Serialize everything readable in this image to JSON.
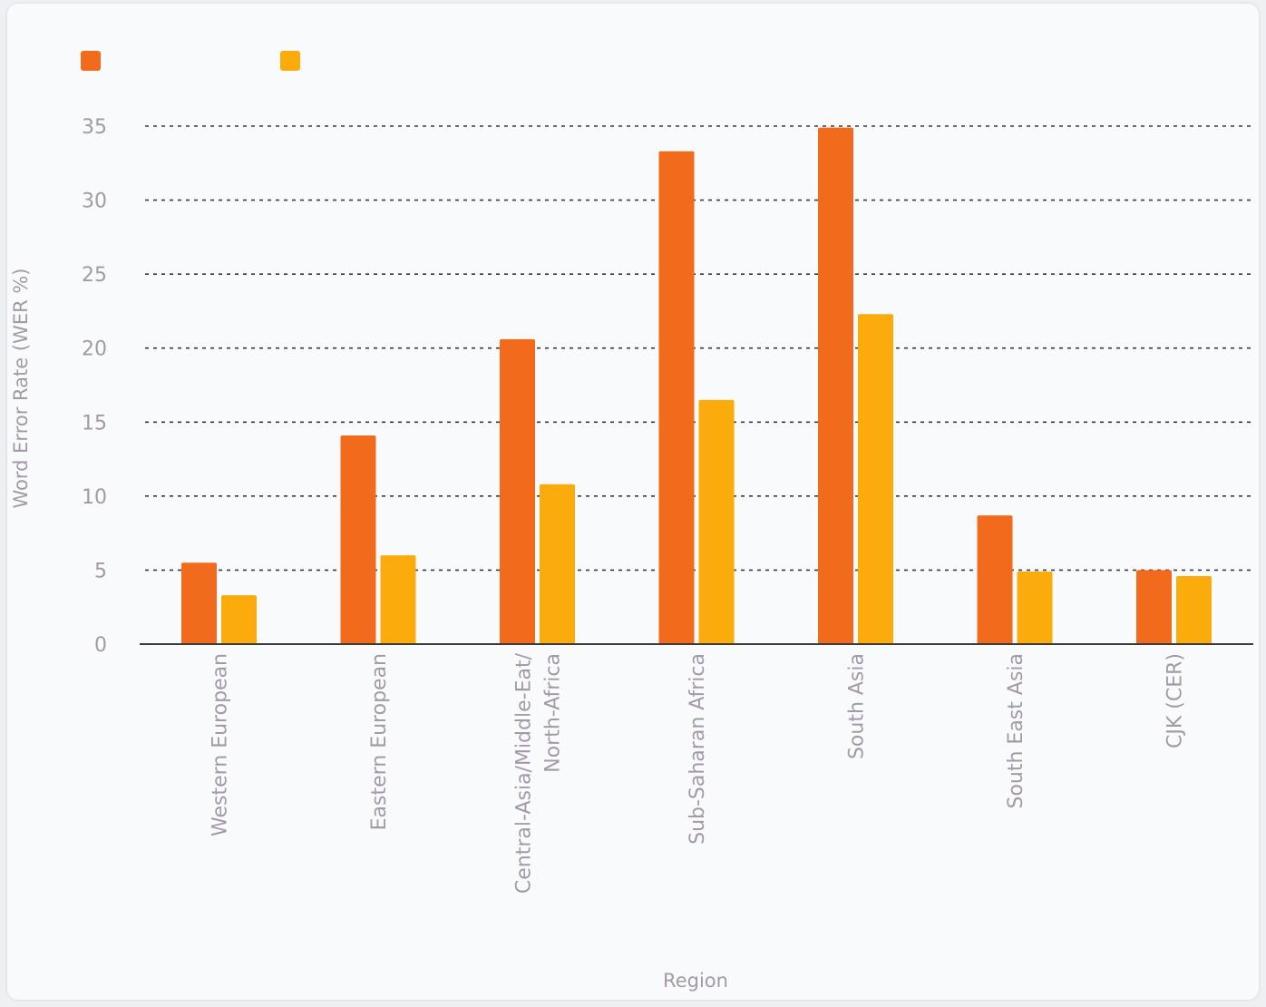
{
  "chart_data": {
    "type": "bar",
    "title": "",
    "xlabel": "Region",
    "ylabel": "Word Error Rate (WER %)",
    "ylim": [
      0,
      35
    ],
    "yticks": [
      0,
      5,
      10,
      15,
      20,
      25,
      30,
      35
    ],
    "grid": true,
    "legend_position": "top-left",
    "categories": [
      "Western European",
      "Eastern European",
      "Central-Asia/Middle-Eat/ North-Africa",
      "Sub-Saharan Africa",
      "South Asia",
      "South East Asia",
      "CJK (CER)"
    ],
    "series": [
      {
        "color": "#f26b1d",
        "values": [
          5.5,
          14.1,
          20.6,
          33.3,
          34.9,
          8.7,
          5.0
        ]
      },
      {
        "color": "#fbab0b",
        "values": [
          3.3,
          6.0,
          10.8,
          16.5,
          22.3,
          4.9,
          4.6
        ]
      }
    ]
  }
}
